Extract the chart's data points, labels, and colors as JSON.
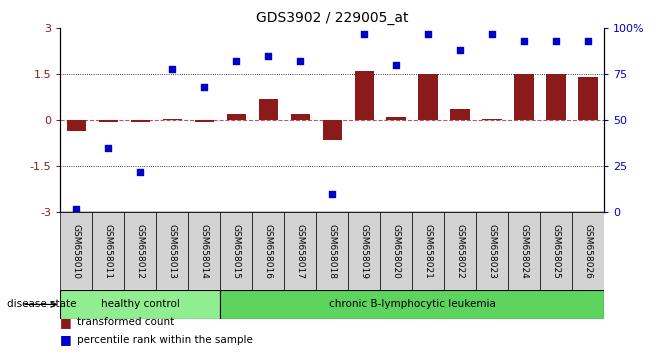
{
  "title": "GDS3902 / 229005_at",
  "samples": [
    "GSM658010",
    "GSM658011",
    "GSM658012",
    "GSM658013",
    "GSM658014",
    "GSM658015",
    "GSM658016",
    "GSM658017",
    "GSM658018",
    "GSM658019",
    "GSM658020",
    "GSM658021",
    "GSM658022",
    "GSM658023",
    "GSM658024",
    "GSM658025",
    "GSM658026"
  ],
  "transformed_count": [
    -0.35,
    -0.04,
    -0.05,
    0.06,
    -0.05,
    0.2,
    0.7,
    0.22,
    -0.65,
    1.62,
    0.1,
    1.52,
    0.38,
    0.05,
    1.52,
    1.52,
    1.42
  ],
  "percentile_rank": [
    2,
    35,
    22,
    78,
    68,
    82,
    85,
    82,
    10,
    97,
    80,
    97,
    88,
    97,
    93,
    93,
    93
  ],
  "healthy_control_count": 5,
  "bar_color": "#8B1A1A",
  "dot_color": "#0000CC",
  "ylim_left": [
    -3,
    3
  ],
  "ylim_right": [
    0,
    100
  ],
  "yticks_left": [
    -3,
    -1.5,
    0,
    1.5,
    3
  ],
  "ytick_labels_left": [
    "-3",
    "-1.5",
    "0",
    "1.5",
    "3"
  ],
  "yticks_right": [
    0,
    25,
    50,
    75,
    100
  ],
  "ytick_labels_right": [
    "0",
    "25",
    "50",
    "75",
    "100%"
  ],
  "healthy_label": "healthy control",
  "leukemia_label": "chronic B-lymphocytic leukemia",
  "disease_state_label": "disease state",
  "legend_bar_label": "transformed count",
  "legend_dot_label": "percentile rank within the sample",
  "healthy_color": "#90EE90",
  "leukemia_color": "#5DD45D",
  "label_box_color": "#D3D3D3",
  "plot_bg": "#FFFFFF"
}
